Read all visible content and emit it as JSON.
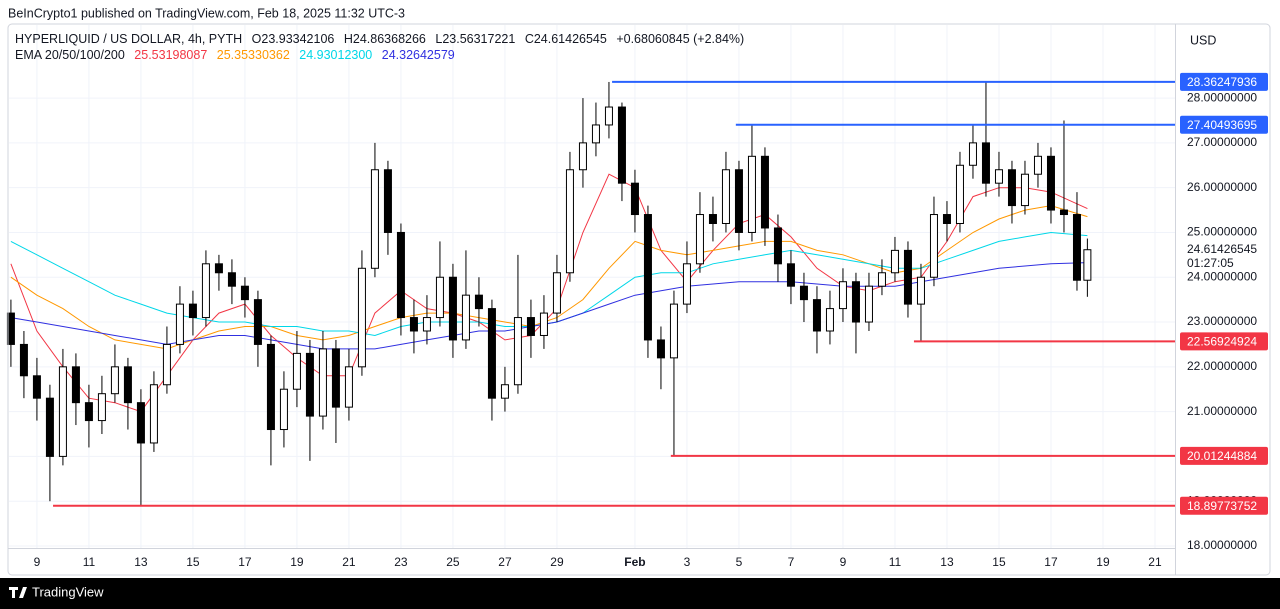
{
  "chart_data": {
    "type": "candlestick",
    "attribution": "BeInCrypto1 published on TradingView.com, Feb 18, 2025 11:32 UTC-3",
    "symbol": "HYPERLIQUID / US DOLLAR, 4h, PYTH",
    "ohlc_labels": [
      "O",
      "H",
      "L",
      "C"
    ],
    "change_label": "+0.68060845 (+2.84%)",
    "ema_label": "EMA 20/50/100/200",
    "currency": "USD",
    "countdown": "01:27:05",
    "brand": "TradingView",
    "x": [
      8,
      8.5,
      9,
      9.5,
      10,
      10.5,
      11,
      11.5,
      12,
      12.5,
      13,
      13.5,
      14,
      14.5,
      15,
      15.5,
      16,
      16.5,
      17,
      17.5,
      18,
      18.5,
      19,
      19.5,
      20,
      20.5,
      21,
      21.5,
      22,
      22.5,
      23,
      23.5,
      24,
      24.5,
      25,
      25.5,
      26,
      26.5,
      27,
      27.5,
      28,
      28.5,
      29,
      29.5,
      30,
      30.5,
      31,
      31.5,
      32,
      32.5,
      33,
      33.5,
      34,
      34.5,
      35,
      35.5,
      36,
      36.5,
      37,
      37.5,
      38,
      38.5,
      39,
      39.5,
      40,
      40.5,
      41,
      41.5,
      42,
      42.5,
      43,
      43.5,
      44,
      44.5,
      45,
      45.5,
      46,
      46.5,
      47,
      47.5,
      48,
      48.5,
      49,
      49.4
    ],
    "open": [
      23.2,
      22.5,
      21.8,
      21.3,
      20.0,
      22.0,
      21.2,
      20.8,
      21.4,
      22.0,
      21.2,
      20.3,
      21.6,
      22.5,
      23.4,
      23.1,
      24.3,
      24.1,
      23.8,
      23.5,
      22.5,
      20.6,
      21.5,
      22.3,
      20.9,
      22.4,
      21.1,
      22.0,
      24.2,
      26.4,
      25.0,
      23.1,
      22.8,
      23.1,
      24.0,
      22.6,
      23.6,
      23.3,
      21.3,
      21.6,
      23.1,
      22.7,
      23.2,
      24.1,
      26.4,
      27.0,
      27.4,
      27.8,
      26.1,
      25.4,
      22.6,
      22.2,
      23.4,
      24.3,
      25.4,
      25.2,
      26.4,
      25.0,
      26.7,
      25.1,
      24.3,
      23.8,
      23.5,
      22.8,
      23.3,
      23.9,
      23.0,
      23.8,
      24.1,
      24.6,
      23.4,
      24.0,
      25.4,
      25.2,
      26.5,
      27.0,
      26.1,
      26.4,
      25.6,
      26.3,
      26.7,
      25.5,
      25.4,
      23.93342106
    ],
    "high": [
      23.5,
      22.8,
      22.2,
      21.6,
      22.4,
      22.3,
      21.6,
      21.8,
      22.5,
      22.2,
      21.5,
      21.9,
      22.9,
      23.8,
      23.7,
      24.6,
      24.5,
      24.4,
      24.0,
      23.7,
      22.7,
      21.9,
      22.8,
      22.6,
      22.8,
      22.6,
      22.4,
      24.6,
      27.0,
      26.6,
      25.2,
      23.5,
      23.6,
      24.8,
      24.3,
      24.6,
      24.0,
      23.5,
      22.0,
      24.5,
      23.5,
      23.6,
      24.5,
      26.8,
      28.0,
      27.9,
      28.36,
      27.9,
      26.4,
      25.6,
      22.9,
      23.7,
      24.8,
      25.9,
      25.8,
      26.8,
      26.6,
      27.4,
      26.9,
      25.4,
      24.6,
      24.1,
      23.8,
      23.7,
      24.2,
      24.1,
      24.1,
      24.4,
      24.9,
      24.8,
      24.3,
      25.8,
      25.7,
      26.8,
      27.4,
      28.36,
      26.8,
      26.6,
      26.6,
      27.0,
      26.9,
      27.5,
      25.9,
      24.86368266
    ],
    "low": [
      22.0,
      21.3,
      20.8,
      19.0,
      19.8,
      20.7,
      20.2,
      20.5,
      21.2,
      20.6,
      18.9,
      20.1,
      21.4,
      22.3,
      22.7,
      22.9,
      23.7,
      23.4,
      23.1,
      22.0,
      19.8,
      20.2,
      21.1,
      19.9,
      20.6,
      20.3,
      20.8,
      21.8,
      24.0,
      24.5,
      22.7,
      22.3,
      22.5,
      22.9,
      22.2,
      22.4,
      22.9,
      20.8,
      21.0,
      21.4,
      22.2,
      22.4,
      23.0,
      23.9,
      26.0,
      26.7,
      27.1,
      25.7,
      25.0,
      22.2,
      21.5,
      20.01,
      23.2,
      24.1,
      24.8,
      25.0,
      24.6,
      24.8,
      24.7,
      23.9,
      23.4,
      23.0,
      22.3,
      22.5,
      23.0,
      22.3,
      22.8,
      23.6,
      23.9,
      23.1,
      22.57,
      23.8,
      24.8,
      25.0,
      26.2,
      25.8,
      25.8,
      25.2,
      25.4,
      26.0,
      25.2,
      25.0,
      23.7,
      23.56317221
    ],
    "close": [
      22.5,
      21.8,
      21.3,
      20.0,
      22.0,
      21.2,
      20.8,
      21.4,
      22.0,
      21.2,
      20.3,
      21.6,
      22.5,
      23.4,
      23.1,
      24.3,
      24.1,
      23.8,
      23.5,
      22.5,
      20.6,
      21.5,
      22.3,
      20.9,
      22.4,
      21.1,
      22.0,
      24.2,
      26.4,
      25.0,
      23.1,
      22.8,
      23.1,
      24.0,
      22.6,
      23.6,
      23.3,
      21.3,
      21.6,
      23.1,
      22.7,
      23.2,
      24.1,
      26.4,
      27.0,
      27.4,
      27.8,
      26.1,
      25.4,
      22.6,
      22.2,
      23.4,
      24.3,
      25.4,
      25.2,
      26.4,
      25.0,
      26.7,
      25.1,
      24.3,
      23.8,
      23.5,
      22.8,
      23.3,
      23.9,
      23.0,
      23.8,
      24.1,
      24.6,
      23.4,
      24.0,
      25.4,
      25.2,
      26.5,
      27.0,
      26.1,
      26.4,
      25.6,
      26.3,
      26.7,
      25.5,
      25.4,
      23.93342106,
      24.61426545
    ],
    "ema": {
      "x": [
        8,
        9,
        10,
        11,
        12,
        13,
        14,
        15,
        16,
        17,
        18,
        19,
        20,
        21,
        22,
        23,
        24,
        25,
        26,
        27,
        28,
        29,
        30,
        31,
        32,
        33,
        34,
        35,
        36,
        37,
        38,
        39,
        40,
        41,
        42,
        43,
        44,
        45,
        46,
        47,
        48,
        49.4
      ],
      "series": [
        {
          "color": "#f23645",
          "label": "25.53198087",
          "values": [
            24.3,
            22.8,
            22.0,
            21.3,
            21.2,
            21.0,
            21.8,
            22.6,
            23.2,
            23.4,
            22.7,
            22.2,
            21.8,
            21.8,
            23.2,
            23.7,
            23.3,
            23.2,
            23.0,
            22.6,
            22.7,
            23.3,
            25.0,
            26.3,
            26.0,
            24.6,
            23.9,
            24.6,
            25.2,
            25.4,
            24.9,
            24.2,
            23.8,
            23.7,
            23.9,
            24.0,
            24.8,
            25.8,
            26.0,
            26.0,
            25.9,
            25.53198087
          ]
        },
        {
          "color": "#ff9800",
          "label": "25.35330362",
          "values": [
            24.0,
            23.6,
            23.3,
            22.9,
            22.6,
            22.5,
            22.4,
            22.6,
            22.8,
            22.9,
            22.9,
            22.7,
            22.6,
            22.7,
            22.9,
            23.1,
            23.2,
            23.2,
            23.1,
            23.0,
            22.9,
            23.1,
            23.5,
            24.2,
            24.8,
            24.6,
            24.5,
            24.6,
            24.7,
            24.8,
            24.8,
            24.6,
            24.5,
            24.3,
            24.1,
            24.2,
            24.6,
            25.0,
            25.3,
            25.5,
            25.6,
            25.35330362
          ]
        },
        {
          "color": "#00d7e8",
          "label": "24.93012300",
          "values": [
            24.8,
            24.5,
            24.2,
            23.9,
            23.6,
            23.4,
            23.2,
            23.1,
            23.0,
            23.0,
            22.9,
            22.9,
            22.8,
            22.8,
            22.7,
            22.9,
            23.0,
            23.0,
            23.0,
            22.9,
            22.9,
            23.0,
            23.2,
            23.6,
            24.0,
            24.1,
            24.1,
            24.3,
            24.4,
            24.5,
            24.6,
            24.5,
            24.4,
            24.3,
            24.2,
            24.2,
            24.4,
            24.6,
            24.8,
            24.9,
            25.0,
            24.930123
          ]
        },
        {
          "color": "#3030e0",
          "label": "24.32642579",
          "values": [
            23.1,
            23.0,
            22.9,
            22.8,
            22.7,
            22.6,
            22.5,
            22.6,
            22.7,
            22.7,
            22.6,
            22.5,
            22.4,
            22.4,
            22.4,
            22.5,
            22.6,
            22.7,
            22.8,
            22.8,
            22.9,
            23.0,
            23.2,
            23.4,
            23.6,
            23.7,
            23.8,
            23.85,
            23.9,
            23.9,
            23.9,
            23.85,
            23.8,
            23.8,
            23.8,
            23.9,
            24.0,
            24.1,
            24.2,
            24.25,
            24.3,
            24.32642579
          ]
        }
      ]
    },
    "levels": [
      {
        "value": 28.36247936,
        "start": 31.12,
        "color": "#2962ff"
      },
      {
        "value": 27.40493695,
        "start": 35.88,
        "color": "#2962ff"
      },
      {
        "value": 22.56924924,
        "start": 42.73,
        "color": "#f23645"
      },
      {
        "value": 20.01244884,
        "start": 33.38,
        "color": "#f23645"
      },
      {
        "value": 18.89773752,
        "start": 9.62,
        "color": "#f23645"
      }
    ],
    "xlim": [
      7.58,
      52.77
    ],
    "ylim": [
      17.955,
      29.52
    ],
    "xticks": [
      9,
      11,
      13,
      15,
      17,
      19,
      21,
      23,
      25,
      27,
      29,
      {
        "value": 32,
        "label": "Feb"
      },
      {
        "value": 34,
        "label": "3"
      },
      {
        "value": 36,
        "label": "5"
      },
      {
        "value": 38,
        "label": "7"
      },
      {
        "value": 40,
        "label": "9"
      },
      {
        "value": 42,
        "label": "11"
      },
      {
        "value": 44,
        "label": "13"
      },
      {
        "value": 46,
        "label": "15"
      },
      {
        "value": 48,
        "label": "17"
      },
      {
        "value": 50,
        "label": "19"
      },
      {
        "value": 52,
        "label": "21"
      }
    ],
    "yticks": [
      {
        "value": 18,
        "label": "18.00000000"
      },
      {
        "value": 19,
        "label": "19.00000000"
      },
      {
        "value": 20,
        "label": "20.00000000"
      },
      {
        "value": 21,
        "label": "21.00000000"
      },
      {
        "value": 22,
        "label": "22.00000000"
      },
      {
        "value": 23,
        "label": "23.00000000"
      },
      {
        "value": 24,
        "label": "24.00000000"
      },
      {
        "value": 25,
        "label": "25.00000000"
      },
      {
        "value": 26,
        "label": "26.00000000"
      },
      {
        "value": 27,
        "label": "27.00000000"
      },
      {
        "value": 28,
        "label": "28.00000000"
      }
    ],
    "grid": true,
    "up_color": "#ffffff",
    "down_color": "#000000"
  }
}
